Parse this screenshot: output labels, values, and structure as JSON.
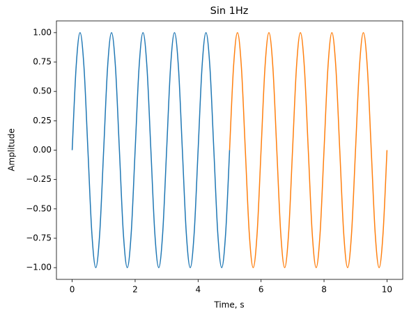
{
  "chart_data": {
    "type": "line",
    "title": "Sin 1Hz",
    "xlabel": "Time, s",
    "ylabel": "Amplitude",
    "xlim": [
      -0.5,
      10.5
    ],
    "ylim": [
      -1.1,
      1.1
    ],
    "xticks": [
      0,
      2,
      4,
      6,
      8,
      10
    ],
    "yticks": [
      {
        "value": -1,
        "label": "−1.00"
      },
      {
        "value": -0.75,
        "label": "−0.75"
      },
      {
        "value": -0.5,
        "label": "−0.50"
      },
      {
        "value": -0.25,
        "label": "−0.25"
      },
      {
        "value": 0,
        "label": "0.00"
      },
      {
        "value": 0.25,
        "label": "0.25"
      },
      {
        "value": 0.5,
        "label": "0.50"
      },
      {
        "value": 0.75,
        "label": "0.75"
      },
      {
        "value": 1,
        "label": "1.00"
      }
    ],
    "grid": false,
    "series": [
      {
        "color": "#1f77b4",
        "x": [
          0,
          0.125,
          0.25,
          0.375,
          0.5,
          0.625,
          0.75,
          0.875,
          1,
          1.125,
          1.25,
          1.375,
          1.5,
          1.625,
          1.75,
          1.875,
          2,
          2.125,
          2.25,
          2.375,
          2.5,
          2.625,
          2.75,
          2.875,
          3,
          3.125,
          3.25,
          3.375,
          3.5,
          3.625,
          3.75,
          3.875,
          4,
          4.125,
          4.25,
          4.375,
          4.5,
          4.625,
          4.75,
          4.875,
          5
        ],
        "values": [
          0,
          0.707,
          1,
          0.707,
          0,
          -0.707,
          -1,
          -0.707,
          0,
          0.707,
          1,
          0.707,
          0,
          -0.707,
          -1,
          -0.707,
          0,
          0.707,
          1,
          0.707,
          0,
          -0.707,
          -1,
          -0.707,
          0,
          0.707,
          1,
          0.707,
          0,
          -0.707,
          -1,
          -0.707,
          0,
          0.707,
          1,
          0.707,
          0,
          -0.707,
          -1,
          -0.707,
          0
        ]
      },
      {
        "color": "#ff7f0e",
        "x": [
          5,
          5.125,
          5.25,
          5.375,
          5.5,
          5.625,
          5.75,
          5.875,
          6,
          6.125,
          6.25,
          6.375,
          6.5,
          6.625,
          6.75,
          6.875,
          7,
          7.125,
          7.25,
          7.375,
          7.5,
          7.625,
          7.75,
          7.875,
          8,
          8.125,
          8.25,
          8.375,
          8.5,
          8.625,
          8.75,
          8.875,
          9,
          9.125,
          9.25,
          9.375,
          9.5,
          9.625,
          9.75,
          9.875,
          10
        ],
        "values": [
          0,
          0.707,
          1,
          0.707,
          0,
          -0.707,
          -1,
          -0.707,
          0,
          0.707,
          1,
          0.707,
          0,
          -0.707,
          -1,
          -0.707,
          0,
          0.707,
          1,
          0.707,
          0,
          -0.707,
          -1,
          -0.707,
          0,
          0.707,
          1,
          0.707,
          0,
          -0.707,
          -1,
          -0.707,
          0,
          0.707,
          1,
          0.707,
          0,
          -0.707,
          -1,
          -0.707,
          0
        ]
      }
    ]
  }
}
